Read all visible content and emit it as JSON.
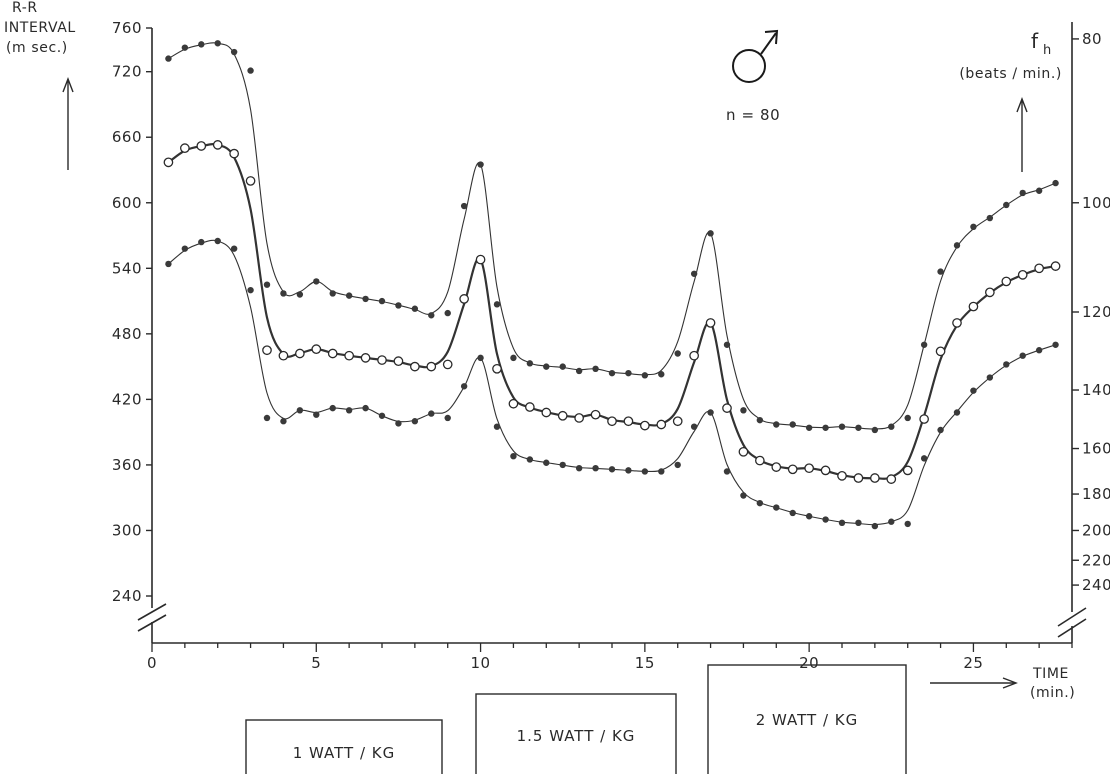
{
  "chart_data": {
    "type": "scatter",
    "title": "",
    "ylabel_left": [
      "R-R",
      "INTERVAL",
      "(m sec.)"
    ],
    "ylabel_right": [
      "f",
      "h",
      "(beats / min.)"
    ],
    "xlabel": [
      "TIME",
      "(min.)"
    ],
    "annotation": "n = 80",
    "symbol": "male-symbol",
    "xlim": [
      0,
      28
    ],
    "ylim": [
      210,
      765
    ],
    "x_ticks": [
      0,
      5,
      10,
      15,
      20,
      25
    ],
    "y_ticks": [
      240,
      300,
      360,
      420,
      480,
      540,
      600,
      660,
      720,
      760
    ],
    "right_ticks": [
      80,
      100,
      120,
      140,
      160,
      180,
      200,
      220,
      240
    ],
    "grid": false,
    "axis_break": true,
    "workload_blocks": [
      {
        "label": "1 WATT / KG",
        "x_start": 2.9,
        "x_end": 9.0
      },
      {
        "label": "1.5 WATT / KG",
        "x_start": 9.9,
        "x_end": 16.9
      },
      {
        "label": "2 WATT / KG",
        "x_start": 16.9,
        "x_end": 23.2
      }
    ],
    "series": [
      {
        "marker": "filled",
        "x": [
          0.5,
          1,
          1.5,
          2,
          2.5,
          3,
          3.5,
          4,
          4.5,
          5,
          5.5,
          6,
          6.5,
          7,
          7.5,
          8,
          8.5,
          9,
          9.5,
          10,
          10.5,
          11,
          11.5,
          12,
          12.5,
          13,
          13.5,
          14,
          14.5,
          15,
          15.5,
          16,
          16.5,
          17,
          17.5,
          18,
          18.5,
          19,
          19.5,
          20,
          20.5,
          21,
          21.5,
          22,
          22.5,
          23,
          23.5,
          24,
          24.5,
          25,
          25.5,
          26,
          26.5,
          27,
          27.5
        ],
        "y": [
          732,
          742,
          745,
          746,
          738,
          721,
          525,
          517,
          516,
          528,
          517,
          515,
          512,
          510,
          506,
          503,
          497,
          499,
          597,
          635,
          507,
          458,
          453,
          450,
          450,
          446,
          448,
          444,
          444,
          442,
          443,
          462,
          535,
          572,
          470,
          410,
          401,
          397,
          397,
          394,
          394,
          395,
          394,
          392,
          395,
          403,
          470,
          537,
          561,
          578,
          586,
          598,
          609,
          611,
          618
        ]
      },
      {
        "marker": "open",
        "x": [
          0.5,
          1,
          1.5,
          2,
          2.5,
          3,
          3.5,
          4,
          4.5,
          5,
          5.5,
          6,
          6.5,
          7,
          7.5,
          8,
          8.5,
          9,
          9.5,
          10,
          10.5,
          11,
          11.5,
          12,
          12.5,
          13,
          13.5,
          14,
          14.5,
          15,
          15.5,
          16,
          16.5,
          17,
          17.5,
          18,
          18.5,
          19,
          19.5,
          20,
          20.5,
          21,
          21.5,
          22,
          22.5,
          23,
          23.5,
          24,
          24.5,
          25,
          25.5,
          26,
          26.5,
          27,
          27.5
        ],
        "y": [
          637,
          650,
          652,
          653,
          645,
          620,
          465,
          460,
          462,
          466,
          462,
          460,
          458,
          456,
          455,
          450,
          450,
          452,
          512,
          548,
          448,
          416,
          413,
          408,
          405,
          403,
          406,
          400,
          400,
          396,
          397,
          400,
          460,
          490,
          412,
          372,
          364,
          358,
          356,
          357,
          355,
          350,
          348,
          348,
          347,
          355,
          402,
          464,
          490,
          505,
          518,
          528,
          534,
          540,
          542
        ]
      },
      {
        "marker": "filled",
        "x": [
          0.5,
          1,
          1.5,
          2,
          2.5,
          3,
          3.5,
          4,
          4.5,
          5,
          5.5,
          6,
          6.5,
          7,
          7.5,
          8,
          8.5,
          9,
          9.5,
          10,
          10.5,
          11,
          11.5,
          12,
          12.5,
          13,
          13.5,
          14,
          14.5,
          15,
          15.5,
          16,
          16.5,
          17,
          17.5,
          18,
          18.5,
          19,
          19.5,
          20,
          20.5,
          21,
          21.5,
          22,
          22.5,
          23,
          23.5,
          24,
          24.5,
          25,
          25.5,
          26,
          26.5,
          27,
          27.5
        ],
        "y": [
          544,
          558,
          564,
          565,
          558,
          520,
          403,
          400,
          410,
          406,
          412,
          410,
          412,
          405,
          398,
          400,
          407,
          403,
          432,
          458,
          395,
          368,
          365,
          362,
          360,
          357,
          357,
          356,
          355,
          354,
          354,
          360,
          395,
          408,
          354,
          332,
          325,
          321,
          316,
          313,
          310,
          307,
          307,
          304,
          308,
          306,
          366,
          392,
          408,
          428,
          440,
          452,
          460,
          465,
          470
        ]
      }
    ]
  }
}
